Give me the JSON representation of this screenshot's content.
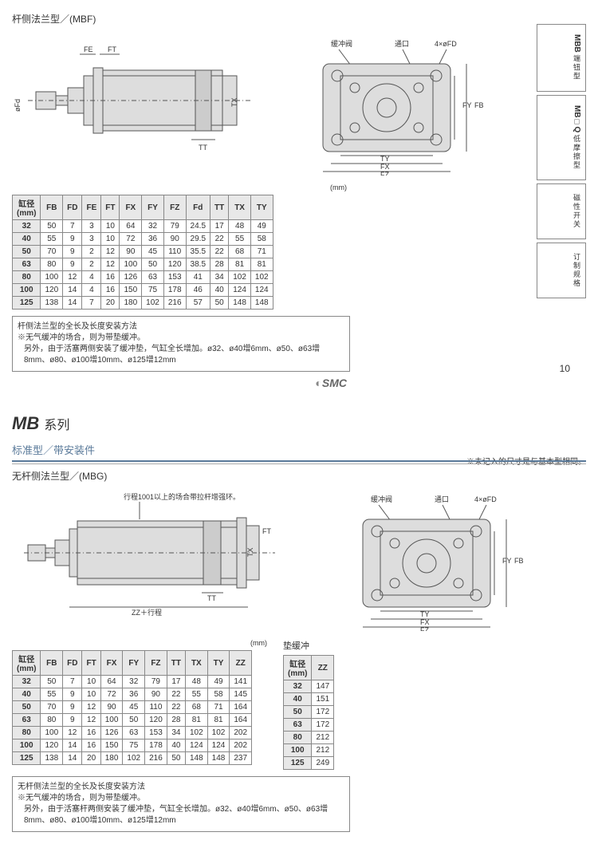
{
  "mbf": {
    "title": "杆侧法兰型／(MBF)",
    "dim_labels": [
      "FE",
      "FT",
      "TT",
      "TX",
      "øFd"
    ],
    "flange_labels": [
      "缓冲阀",
      "通口",
      "4×øFD",
      "FY",
      "FB",
      "TY",
      "FX",
      "FZ"
    ],
    "unit": "(mm)",
    "columns": [
      "缸径\n(mm)",
      "FB",
      "FD",
      "FE",
      "FT",
      "FX",
      "FY",
      "FZ",
      "Fd",
      "TT",
      "TX",
      "TY"
    ],
    "rows": [
      [
        "32",
        "50",
        "7",
        "3",
        "10",
        "64",
        "32",
        "79",
        "24.5",
        "17",
        "48",
        "49"
      ],
      [
        "40",
        "55",
        "9",
        "3",
        "10",
        "72",
        "36",
        "90",
        "29.5",
        "22",
        "55",
        "58"
      ],
      [
        "50",
        "70",
        "9",
        "2",
        "12",
        "90",
        "45",
        "110",
        "35.5",
        "22",
        "68",
        "71"
      ],
      [
        "63",
        "80",
        "9",
        "2",
        "12",
        "100",
        "50",
        "120",
        "38.5",
        "28",
        "81",
        "81"
      ],
      [
        "80",
        "100",
        "12",
        "4",
        "16",
        "126",
        "63",
        "153",
        "41",
        "34",
        "102",
        "102"
      ],
      [
        "100",
        "120",
        "14",
        "4",
        "16",
        "150",
        "75",
        "178",
        "46",
        "40",
        "124",
        "124"
      ],
      [
        "125",
        "138",
        "14",
        "7",
        "20",
        "180",
        "102",
        "216",
        "57",
        "50",
        "148",
        "148"
      ]
    ],
    "note_title": "杆侧法兰型的全长及长度安装方法",
    "note1": "※无气缓冲的场合，则为带垫缓冲。",
    "note2": "另外，由于活塞两侧安装了缓冲垫，气缸全长增加。ø32、ø40增6mm、ø50、ø63增8mm、ø80、ø100增10mm、ø125增12mm",
    "logo": "SMC",
    "page": "10"
  },
  "side_tabs": [
    {
      "main": "MBB",
      "side": "端钮型"
    },
    {
      "main": "MB□Q",
      "side": "低摩擦型"
    },
    {
      "main": "",
      "side": "磁性开关"
    },
    {
      "main": "",
      "side": "订制规格"
    }
  ],
  "mb_series": {
    "title": "MB",
    "suffix": "系列",
    "sub1": "标准型／带安装件",
    "sub2": "无杆侧法兰型／(MBG)",
    "note_right": "※未记入的尺寸是与基本型相同。",
    "stroke_note": "行程1001以上的场合带拉杆增强环。",
    "dim_labels": [
      "TT",
      "ZZ＋行程",
      "TX",
      "FT"
    ],
    "flange_labels": [
      "缓冲阀",
      "通口",
      "4×øFD",
      "FY",
      "FB",
      "TY",
      "FX",
      "FZ"
    ]
  },
  "mbg_table": {
    "unit": "(mm)",
    "columns": [
      "缸径\n(mm)",
      "FB",
      "FD",
      "FT",
      "FX",
      "FY",
      "FZ",
      "TT",
      "TX",
      "TY",
      "ZZ"
    ],
    "rows": [
      [
        "32",
        "50",
        "7",
        "10",
        "64",
        "32",
        "79",
        "17",
        "48",
        "49",
        "141"
      ],
      [
        "40",
        "55",
        "9",
        "10",
        "72",
        "36",
        "90",
        "22",
        "55",
        "58",
        "145"
      ],
      [
        "50",
        "70",
        "9",
        "12",
        "90",
        "45",
        "110",
        "22",
        "68",
        "71",
        "164"
      ],
      [
        "63",
        "80",
        "9",
        "12",
        "100",
        "50",
        "120",
        "28",
        "81",
        "81",
        "164"
      ],
      [
        "80",
        "100",
        "12",
        "16",
        "126",
        "63",
        "153",
        "34",
        "102",
        "102",
        "202"
      ],
      [
        "100",
        "120",
        "14",
        "16",
        "150",
        "75",
        "178",
        "40",
        "124",
        "124",
        "202"
      ],
      [
        "125",
        "138",
        "14",
        "20",
        "180",
        "102",
        "216",
        "50",
        "148",
        "148",
        "237"
      ]
    ]
  },
  "cushion_table": {
    "title": "垫缓冲",
    "columns": [
      "缸径\n(mm)",
      "ZZ"
    ],
    "rows": [
      [
        "32",
        "147"
      ],
      [
        "40",
        "151"
      ],
      [
        "50",
        "172"
      ],
      [
        "63",
        "172"
      ],
      [
        "80",
        "212"
      ],
      [
        "100",
        "212"
      ],
      [
        "125",
        "249"
      ]
    ]
  },
  "mbg_note": {
    "title": "无杆侧法兰型的全长及长度安装方法",
    "note1": "※无气缓冲的场合，则为带垫缓冲。",
    "note2": "另外，由于活塞杆两侧安装了缓冲垫，气缸全长增加。ø32、ø40增6mm、ø50、ø63增8mm、ø80、ø100增10mm、ø125增12mm"
  },
  "colors": {
    "accent": "#5a7a9a",
    "border": "#888888",
    "headerBg": "#e8e8e8"
  }
}
